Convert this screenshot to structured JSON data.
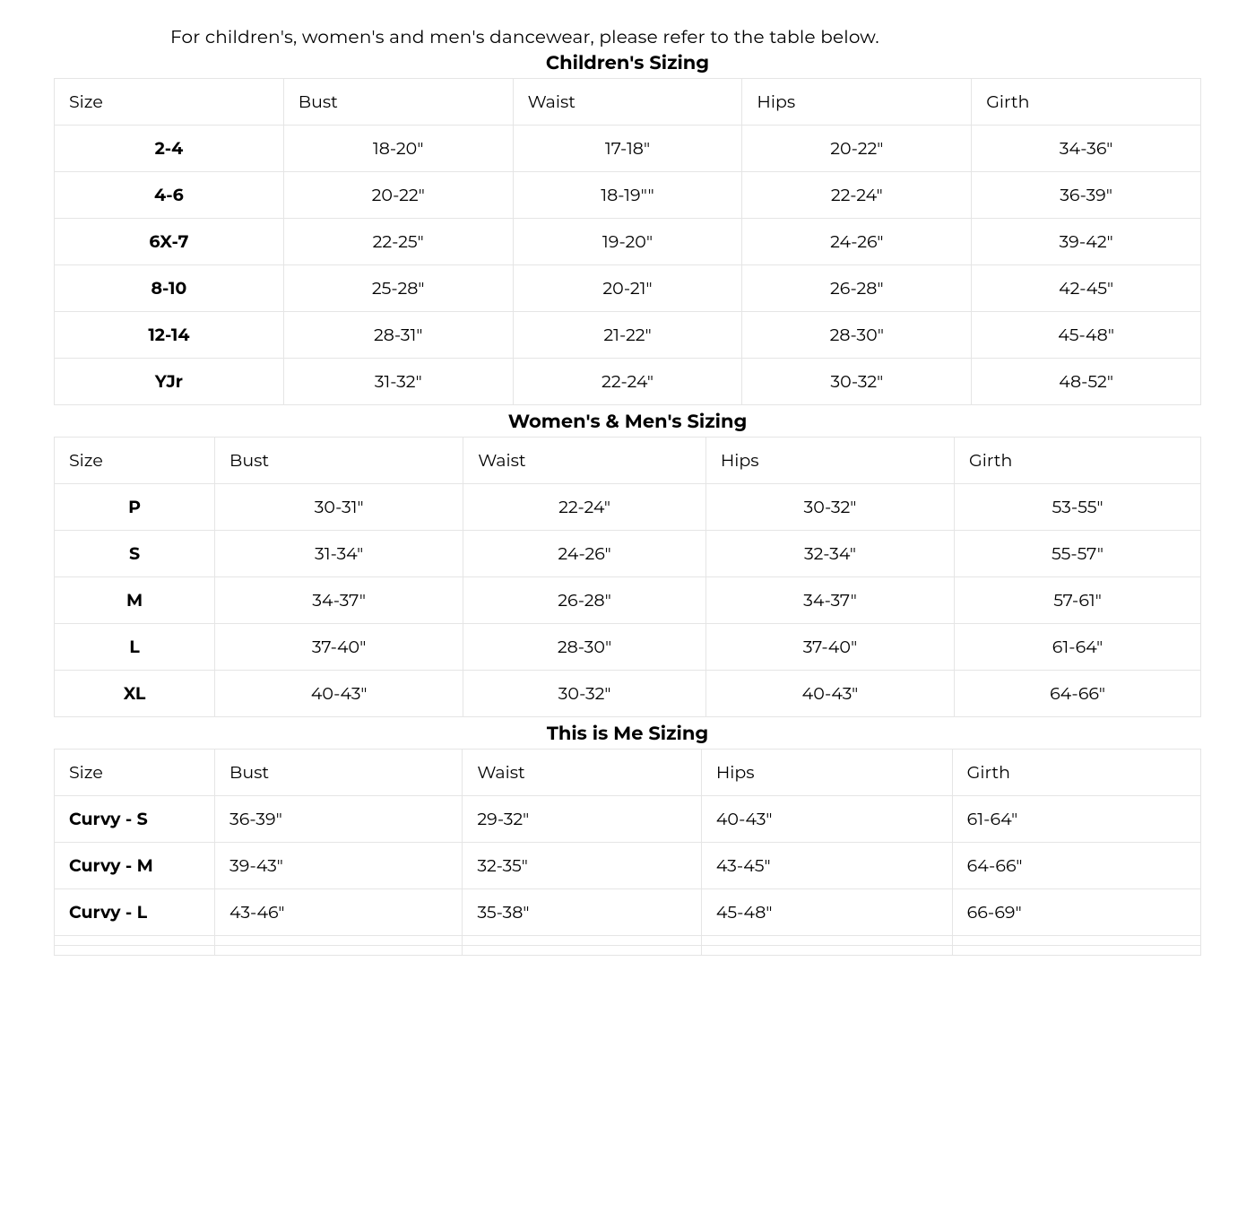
{
  "intro_text": "For children's, women's and men's dancewear, please refer to the table below.",
  "tables": {
    "children": {
      "title": "Children's Sizing",
      "columns": [
        "Size",
        "Bust",
        "Waist",
        "Hips",
        "Girth"
      ],
      "rows": [
        [
          "2-4",
          "18-20\"",
          "17-18\"",
          "20-22\"",
          "34-36\""
        ],
        [
          "4-6",
          "20-22\"",
          "18-19\"\"",
          "22-24\"",
          "36-39\""
        ],
        [
          "6X-7",
          "22-25\"",
          "19-20\"",
          "24-26\"",
          "39-42\""
        ],
        [
          "8-10",
          "25-28\"",
          "20-21\"",
          "26-28\"",
          "42-45\""
        ],
        [
          "12-14",
          "28-31\"",
          "21-22\"",
          "28-30\"",
          "45-48\""
        ],
        [
          "YJr",
          "31-32\"",
          "22-24\"",
          "30-32\"",
          "48-52\""
        ]
      ]
    },
    "adults": {
      "title": "Women's & Men's Sizing",
      "columns": [
        "Size",
        "Bust",
        "Waist",
        "Hips",
        "Girth"
      ],
      "rows": [
        [
          "P",
          "30-31\"",
          "22-24\"",
          "30-32\"",
          "53-55\""
        ],
        [
          "S",
          "31-34\"",
          "24-26\"",
          "32-34\"",
          "55-57\""
        ],
        [
          "M",
          "34-37\"",
          "26-28\"",
          "34-37\"",
          "57-61\""
        ],
        [
          "L",
          "37-40\"",
          "28-30\"",
          "37-40\"",
          "61-64\""
        ],
        [
          "XL",
          "40-43\"",
          "30-32\"",
          "40-43\"",
          "64-66\""
        ]
      ]
    },
    "thisisme": {
      "title": "This is Me Sizing",
      "columns": [
        "Size",
        "Bust",
        "Waist",
        "Hips",
        "Girth"
      ],
      "rows": [
        [
          "Curvy - S",
          "36-39\"",
          "29-32\"",
          "40-43\"",
          "61-64\""
        ],
        [
          "Curvy - M",
          "39-43\"",
          "32-35\"",
          "43-45\"",
          "64-66\""
        ],
        [
          "Curvy - L",
          "43-46\"",
          "35-38\"",
          "45-48\"",
          "66-69\""
        ]
      ],
      "empty_rows": 2
    }
  },
  "colors": {
    "border": "#e5e5e5",
    "text": "#000000",
    "background": "#ffffff"
  }
}
